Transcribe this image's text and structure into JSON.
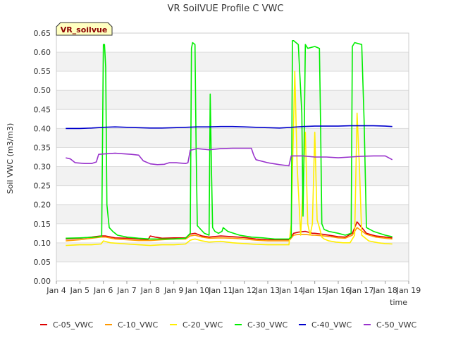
{
  "chart_data": {
    "type": "line",
    "title": "VR SoilVUE Profile C VWC",
    "xlabel": "time",
    "ylabel": "Soil VWC (m3/m3)",
    "badge": "VR_soilvue",
    "xlim": [
      4,
      19
    ],
    "ylim": [
      0.0,
      0.65
    ],
    "x_tick_values": [
      4,
      5,
      6,
      7,
      8,
      9,
      10,
      11,
      12,
      13,
      14,
      15,
      16,
      17,
      18,
      19
    ],
    "x_tick_labels": [
      "Jan 4",
      "Jan 5",
      "Jan 6",
      "Jan 7",
      "Jan 8",
      "Jan 9",
      "Jan 10",
      "Jan 11",
      "Jan 12",
      "Jan 13",
      "Jan 14",
      "Jan 15",
      "Jan 16",
      "Jan 17",
      "Jan 18",
      "Jan 19"
    ],
    "y_tick_values": [
      0.0,
      0.05,
      0.1,
      0.15,
      0.2,
      0.25,
      0.3,
      0.35,
      0.4,
      0.45,
      0.5,
      0.55,
      0.6,
      0.65
    ],
    "y_tick_labels": [
      "0.00",
      "0.05",
      "0.10",
      "0.15",
      "0.20",
      "0.25",
      "0.30",
      "0.35",
      "0.40",
      "0.45",
      "0.50",
      "0.55",
      "0.60",
      "0.65"
    ],
    "grid": true,
    "legend_position": "bottom",
    "series": [
      {
        "name": "C-05_VWC",
        "color": "#dd0000",
        "x": [
          4.4,
          5.0,
          5.5,
          5.9,
          6.1,
          6.5,
          7.0,
          7.5,
          7.9,
          8.0,
          8.2,
          8.5,
          9.0,
          9.5,
          9.7,
          9.9,
          10.2,
          10.5,
          11.0,
          11.5,
          12.0,
          12.5,
          13.0,
          13.5,
          13.9,
          14.1,
          14.3,
          14.6,
          14.9,
          15.0,
          15.4,
          15.8,
          16.0,
          16.3,
          16.6,
          16.8,
          17.2,
          17.6,
          18.0,
          18.3
        ],
        "y": [
          0.11,
          0.112,
          0.115,
          0.118,
          0.118,
          0.113,
          0.112,
          0.11,
          0.108,
          0.118,
          0.115,
          0.112,
          0.113,
          0.113,
          0.123,
          0.125,
          0.118,
          0.115,
          0.118,
          0.116,
          0.114,
          0.11,
          0.108,
          0.108,
          0.108,
          0.125,
          0.128,
          0.13,
          0.125,
          0.125,
          0.122,
          0.118,
          0.116,
          0.115,
          0.125,
          0.155,
          0.125,
          0.118,
          0.115,
          0.113
        ]
      },
      {
        "name": "C-10_VWC",
        "color": "#ff9900",
        "x": [
          4.4,
          5.0,
          5.5,
          5.9,
          6.1,
          6.5,
          7.0,
          7.5,
          8.0,
          8.5,
          9.0,
          9.5,
          9.7,
          9.9,
          10.2,
          10.5,
          11.0,
          11.5,
          12.0,
          12.5,
          13.0,
          13.5,
          13.9,
          14.1,
          14.3,
          14.6,
          14.9,
          15.0,
          15.4,
          15.8,
          16.0,
          16.3,
          16.6,
          16.8,
          17.2,
          17.6,
          18.0,
          18.3
        ],
        "y": [
          0.105,
          0.108,
          0.112,
          0.115,
          0.115,
          0.11,
          0.108,
          0.106,
          0.106,
          0.108,
          0.11,
          0.11,
          0.118,
          0.12,
          0.115,
          0.112,
          0.113,
          0.112,
          0.11,
          0.107,
          0.105,
          0.105,
          0.105,
          0.12,
          0.122,
          0.122,
          0.12,
          0.12,
          0.118,
          0.115,
          0.113,
          0.112,
          0.12,
          0.14,
          0.122,
          0.115,
          0.112,
          0.11
        ]
      },
      {
        "name": "C-20_VWC",
        "color": "#ffee00",
        "x": [
          4.4,
          5.0,
          5.5,
          5.9,
          6.0,
          6.3,
          7.0,
          7.5,
          8.0,
          8.5,
          9.0,
          9.5,
          9.7,
          9.9,
          10.2,
          10.5,
          11.0,
          11.5,
          12.0,
          12.5,
          13.0,
          13.5,
          13.9,
          14.0,
          14.15,
          14.25,
          14.4,
          14.6,
          14.7,
          14.8,
          14.9,
          15.0,
          15.1,
          15.2,
          15.3,
          15.4,
          15.6,
          15.9,
          16.2,
          16.5,
          16.7,
          16.8,
          16.9,
          17.0,
          17.3,
          17.7,
          18.0,
          18.3
        ],
        "y": [
          0.093,
          0.095,
          0.095,
          0.097,
          0.105,
          0.1,
          0.097,
          0.095,
          0.093,
          0.095,
          0.095,
          0.097,
          0.107,
          0.11,
          0.105,
          0.102,
          0.104,
          0.1,
          0.098,
          0.096,
          0.095,
          0.095,
          0.095,
          0.15,
          0.55,
          0.3,
          0.12,
          0.39,
          0.15,
          0.12,
          0.15,
          0.39,
          0.16,
          0.14,
          0.115,
          0.11,
          0.105,
          0.102,
          0.1,
          0.1,
          0.12,
          0.44,
          0.3,
          0.12,
          0.105,
          0.1,
          0.098,
          0.097
        ]
      },
      {
        "name": "C-30_VWC",
        "color": "#00ee00",
        "x": [
          4.4,
          5.0,
          5.7,
          5.93,
          6.0,
          6.05,
          6.1,
          6.15,
          6.25,
          6.4,
          6.6,
          7.0,
          7.5,
          8.0,
          8.5,
          9.0,
          9.5,
          9.7,
          9.75,
          9.8,
          9.9,
          9.95,
          10.0,
          10.3,
          10.5,
          10.55,
          10.6,
          10.65,
          10.75,
          10.9,
          11.05,
          11.1,
          11.3,
          11.8,
          12.3,
          12.8,
          13.3,
          13.9,
          14.0,
          14.05,
          14.1,
          14.3,
          14.45,
          14.5,
          14.55,
          14.6,
          14.7,
          15.0,
          15.2,
          15.25,
          15.3,
          15.4,
          15.6,
          16.0,
          16.3,
          16.55,
          16.6,
          16.7,
          17.0,
          17.1,
          17.2,
          17.5,
          18.0,
          18.3
        ],
        "y": [
          0.112,
          0.113,
          0.115,
          0.118,
          0.62,
          0.62,
          0.56,
          0.2,
          0.14,
          0.13,
          0.12,
          0.115,
          0.112,
          0.11,
          0.11,
          0.11,
          0.112,
          0.125,
          0.61,
          0.625,
          0.62,
          0.35,
          0.145,
          0.125,
          0.12,
          0.49,
          0.3,
          0.14,
          0.13,
          0.125,
          0.13,
          0.14,
          0.13,
          0.12,
          0.115,
          0.113,
          0.11,
          0.11,
          0.115,
          0.63,
          0.63,
          0.62,
          0.44,
          0.17,
          0.38,
          0.62,
          0.61,
          0.615,
          0.61,
          0.4,
          0.15,
          0.135,
          0.13,
          0.125,
          0.12,
          0.125,
          0.615,
          0.625,
          0.62,
          0.42,
          0.14,
          0.13,
          0.12,
          0.116
        ]
      },
      {
        "name": "C-40_VWC",
        "color": "#0000cc",
        "x": [
          4.4,
          5.0,
          5.5,
          6.0,
          6.5,
          7.0,
          7.5,
          8.0,
          8.5,
          9.0,
          9.5,
          10.0,
          10.5,
          11.0,
          11.5,
          12.0,
          12.5,
          13.0,
          13.5,
          14.0,
          14.5,
          15.0,
          15.5,
          16.0,
          16.5,
          17.0,
          17.5,
          18.0,
          18.3
        ],
        "y": [
          0.4,
          0.4,
          0.401,
          0.403,
          0.404,
          0.403,
          0.402,
          0.401,
          0.401,
          0.402,
          0.403,
          0.404,
          0.404,
          0.405,
          0.405,
          0.404,
          0.403,
          0.402,
          0.401,
          0.403,
          0.405,
          0.406,
          0.406,
          0.406,
          0.407,
          0.407,
          0.407,
          0.406,
          0.405
        ]
      },
      {
        "name": "C-50_VWC",
        "color": "#9933cc",
        "x": [
          4.4,
          4.6,
          4.8,
          5.2,
          5.5,
          5.7,
          5.8,
          6.0,
          6.5,
          7.2,
          7.5,
          7.7,
          8.0,
          8.3,
          8.6,
          8.8,
          9.1,
          9.5,
          9.6,
          9.7,
          10.0,
          10.5,
          11.0,
          11.5,
          12.0,
          12.3,
          12.4,
          12.5,
          13.0,
          13.5,
          13.9,
          14.0,
          14.5,
          15.0,
          15.5,
          16.0,
          16.5,
          17.0,
          17.5,
          18.0,
          18.3
        ],
        "y": [
          0.323,
          0.32,
          0.31,
          0.308,
          0.308,
          0.312,
          0.332,
          0.333,
          0.335,
          0.332,
          0.33,
          0.315,
          0.307,
          0.305,
          0.306,
          0.31,
          0.31,
          0.308,
          0.31,
          0.343,
          0.347,
          0.344,
          0.347,
          0.348,
          0.348,
          0.348,
          0.33,
          0.318,
          0.31,
          0.305,
          0.302,
          0.328,
          0.328,
          0.325,
          0.325,
          0.323,
          0.325,
          0.327,
          0.328,
          0.328,
          0.318
        ]
      }
    ]
  }
}
